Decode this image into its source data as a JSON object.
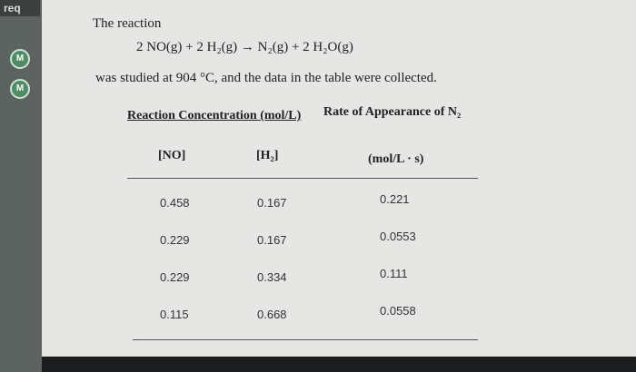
{
  "sidebar": {
    "label": "req",
    "items": [
      "M",
      "M"
    ]
  },
  "problem": {
    "intro": "The reaction",
    "equation": "2 NO(g) + 2 H₂(g) → N₂(g) + 2 H₂O(g)",
    "statement": "was studied at 904 °C, and the data in the table were collected."
  },
  "table": {
    "group_headers": [
      "Reaction Concentration (mol/L)",
      "Rate of Appearance of N₂"
    ],
    "columns": [
      "[NO]",
      "[H₂]",
      "(mol/L · s)"
    ],
    "rows": [
      [
        "0.458",
        "0.167",
        "0.221"
      ],
      [
        "0.229",
        "0.167",
        "0.0553"
      ],
      [
        "0.229",
        "0.334",
        "0.111"
      ],
      [
        "0.115",
        "0.668",
        "0.0558"
      ]
    ]
  }
}
